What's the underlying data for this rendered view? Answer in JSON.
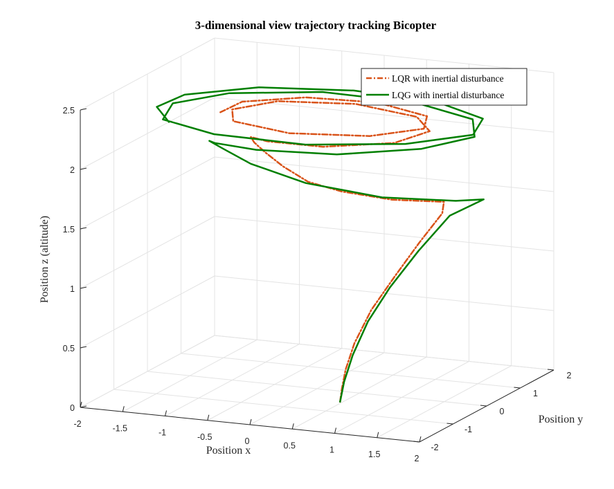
{
  "chart_data": {
    "type": "line",
    "title": "3-dimensional view trajectory tracking Bicopter",
    "xlabel": "Position x",
    "ylabel": "Position y",
    "zlabel": "Position z (altitude)",
    "xlim": [
      -2,
      2
    ],
    "ylim": [
      -2,
      2
    ],
    "zlim": [
      0,
      2.5
    ],
    "xticks": [
      "-2",
      "-1.5",
      "-1",
      "-0.5",
      "0",
      "0.5",
      "1",
      "1.5",
      "2"
    ],
    "yticks": [
      "-2",
      "-1",
      "0",
      "1",
      "2"
    ],
    "zticks": [
      "0",
      "0.5",
      "1",
      "1.5",
      "2",
      "2.5"
    ],
    "grid": true,
    "legend_position": "top-right",
    "series": [
      {
        "name": "LQR with inertial disturbance",
        "color": "#D95319",
        "line_style": "dash-dot",
        "points": [
          [
            0.47,
            -0.5,
            0.0
          ],
          [
            0.47,
            -0.45,
            0.1
          ],
          [
            0.48,
            -0.36,
            0.25
          ],
          [
            0.52,
            -0.2,
            0.45
          ],
          [
            0.62,
            0.05,
            0.7
          ],
          [
            0.78,
            0.35,
            0.95
          ],
          [
            0.95,
            0.65,
            1.2
          ],
          [
            1.12,
            0.9,
            1.42
          ],
          [
            1.1,
            1.0,
            1.5
          ],
          [
            0.55,
            0.85,
            1.5
          ],
          [
            0.0,
            0.72,
            1.55
          ],
          [
            -0.35,
            0.62,
            1.62
          ],
          [
            -0.6,
            0.5,
            1.75
          ],
          [
            -0.75,
            0.35,
            1.88
          ],
          [
            -0.82,
            0.2,
            1.98
          ],
          [
            -0.8,
            0.05,
            2.05
          ],
          [
            -0.45,
            -0.35,
            2.1
          ],
          [
            0.25,
            -0.45,
            2.12
          ],
          [
            0.95,
            -0.1,
            2.15
          ],
          [
            1.15,
            0.45,
            2.18
          ],
          [
            0.8,
            0.95,
            2.2
          ],
          [
            0.0,
            1.15,
            2.22
          ],
          [
            -0.8,
            0.85,
            2.23
          ],
          [
            -1.1,
            0.25,
            2.23
          ],
          [
            -0.85,
            -0.35,
            2.24
          ],
          [
            -0.05,
            -0.7,
            2.25
          ],
          [
            0.8,
            -0.45,
            2.25
          ],
          [
            1.2,
            0.15,
            2.25
          ],
          [
            1.0,
            0.75,
            2.25
          ],
          [
            0.25,
            1.15,
            2.25
          ],
          [
            -0.55,
            1.05,
            2.25
          ],
          [
            -1.1,
            0.55,
            2.25
          ],
          [
            -1.12,
            -0.05,
            2.25
          ]
        ]
      },
      {
        "name": "LQG with inertial disturbance",
        "color": "#007F00",
        "line_style": "solid",
        "points": [
          [
            0.47,
            -0.5,
            0.0
          ],
          [
            0.47,
            -0.38,
            0.15
          ],
          [
            0.5,
            -0.2,
            0.35
          ],
          [
            0.58,
            0.05,
            0.6
          ],
          [
            0.72,
            0.35,
            0.85
          ],
          [
            0.92,
            0.7,
            1.12
          ],
          [
            1.15,
            1.05,
            1.38
          ],
          [
            1.45,
            1.3,
            1.5
          ],
          [
            1.2,
            1.1,
            1.5
          ],
          [
            0.45,
            0.8,
            1.52
          ],
          [
            -0.35,
            0.55,
            1.62
          ],
          [
            -0.9,
            0.3,
            1.78
          ],
          [
            -1.15,
            0.1,
            1.92
          ],
          [
            -1.25,
            -0.05,
            2.0
          ],
          [
            -1.05,
            -0.4,
            2.05
          ],
          [
            -0.4,
            -0.8,
            2.1
          ],
          [
            0.55,
            -0.8,
            2.13
          ],
          [
            1.35,
            -0.3,
            2.16
          ],
          [
            1.7,
            0.4,
            2.18
          ],
          [
            1.4,
            1.1,
            2.2
          ],
          [
            0.55,
            1.55,
            2.21
          ],
          [
            -0.55,
            1.55,
            2.22
          ],
          [
            -1.45,
            1.05,
            2.22
          ],
          [
            -1.8,
            0.25,
            2.23
          ],
          [
            -1.6,
            -0.55,
            2.23
          ],
          [
            -0.8,
            -1.05,
            2.24
          ],
          [
            0.3,
            -1.1,
            2.24
          ],
          [
            1.3,
            -0.65,
            2.25
          ],
          [
            1.8,
            0.1,
            2.25
          ],
          [
            1.6,
            0.9,
            2.25
          ],
          [
            0.85,
            1.45,
            2.25
          ],
          [
            -0.2,
            1.6,
            2.25
          ],
          [
            -1.2,
            1.3,
            2.25
          ],
          [
            -1.8,
            0.6,
            2.25
          ],
          [
            -1.85,
            -0.1,
            2.25
          ],
          [
            -1.45,
            -0.75,
            2.25
          ]
        ]
      }
    ]
  }
}
